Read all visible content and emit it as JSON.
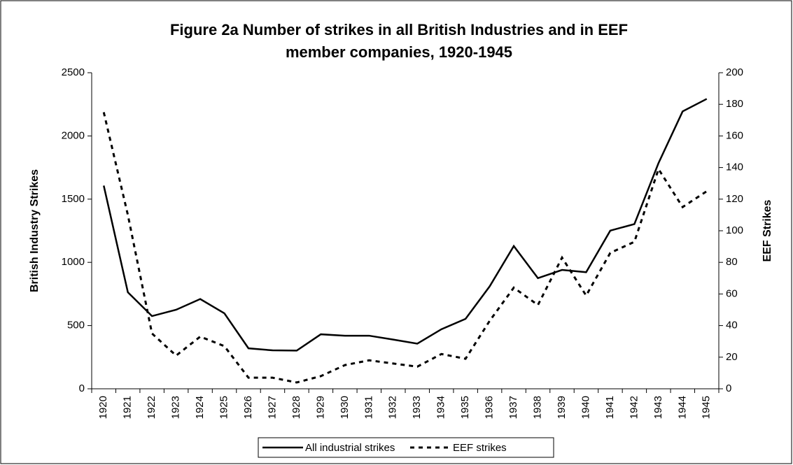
{
  "chart_data": {
    "type": "line",
    "title": [
      "Figure 2a Number of strikes in all British Industries and in EEF",
      "member companies, 1920-1945"
    ],
    "y_label": "British Industry Strikes",
    "y2_label": "EEF Strikes",
    "categories": [
      "1920",
      "1921",
      "1922",
      "1923",
      "1924",
      "1925",
      "1926",
      "1927",
      "1928",
      "1929",
      "1930",
      "1931",
      "1932",
      "1933",
      "1934",
      "1935",
      "1936",
      "1937",
      "1938",
      "1939",
      "1940",
      "1941",
      "1942",
      "1943",
      "1944",
      "1945"
    ],
    "series": [
      {
        "name": "All industrial strikes",
        "color": "#000000",
        "style": "solid",
        "values": [
          1607,
          763,
          575,
          625,
          710,
          597,
          320,
          304,
          302,
          431,
          420,
          420,
          389,
          357,
          471,
          553,
          810,
          1129,
          875,
          940,
          922,
          1251,
          1303,
          1785,
          2194,
          2293
        ]
      },
      {
        "name": "EEF strikes",
        "color": "#000000",
        "style": "dotted",
        "axis": "y2",
        "values": [
          175,
          110,
          35,
          21,
          33,
          27,
          7,
          7,
          4,
          8,
          15,
          18,
          16,
          14,
          22,
          19,
          43,
          64,
          53,
          83,
          59,
          86,
          93,
          139,
          115,
          125
        ]
      }
    ],
    "ylim": [
      0,
      2500
    ],
    "yticks": [
      0,
      500,
      1000,
      1500,
      2000,
      2500
    ],
    "y2lim": [
      0,
      200
    ],
    "y2ticks": [
      0,
      20,
      40,
      60,
      80,
      100,
      120,
      140,
      160,
      180,
      200
    ],
    "grid": false,
    "legend": "bottom"
  }
}
